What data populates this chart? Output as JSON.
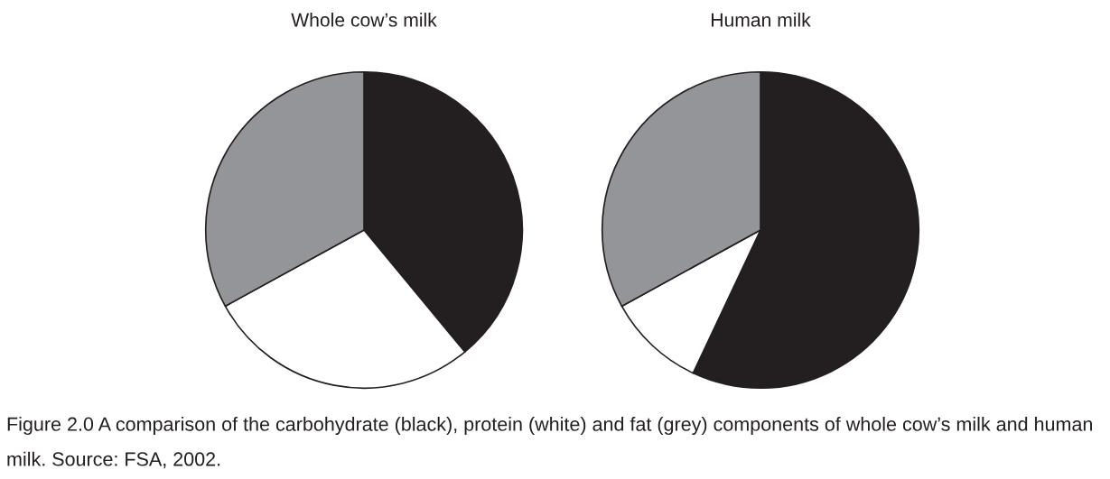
{
  "chart_data": [
    {
      "type": "pie",
      "title": "Whole cow’s milk",
      "categories": [
        null,
        null,
        null
      ],
      "values": [
        39,
        28,
        33
      ],
      "colors": [
        "#231f20",
        "#ffffff",
        "#939598"
      ]
    },
    {
      "type": "pie",
      "title": "Human milk",
      "categories": [
        null,
        null,
        null
      ],
      "values": [
        57,
        10,
        33
      ],
      "colors": [
        "#231f20",
        "#ffffff",
        "#939598"
      ],
      "annotations": [
        "Figure 2.0 A comparison of the carbohydrate (black), protein (white) and fat (grey) components of whole cow’s milk and human milk. Source: FSA, 2002."
      ]
    }
  ]
}
